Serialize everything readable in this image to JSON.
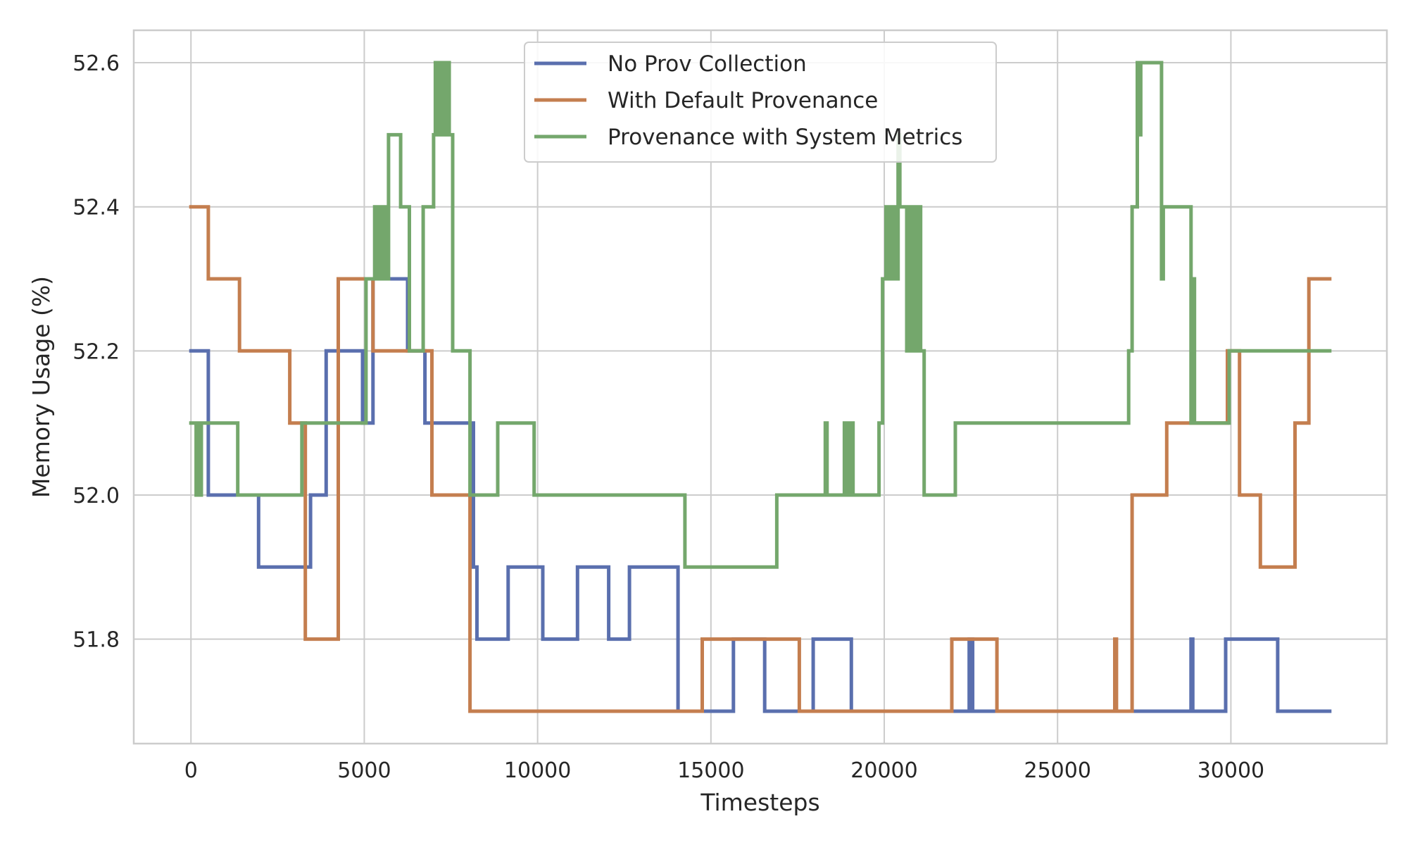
{
  "chart_data": {
    "type": "line",
    "step": "post",
    "xlabel": "Timesteps",
    "ylabel": "Memory Usage (%)",
    "xlim": [
      -1650,
      34500
    ],
    "ylim": [
      51.655,
      52.645
    ],
    "xticks": [
      0,
      5000,
      10000,
      15000,
      20000,
      25000,
      30000
    ],
    "yticks": [
      51.8,
      52.0,
      52.2,
      52.4,
      52.6
    ],
    "ytick_labels": [
      "51.8",
      "52.0",
      "52.2",
      "52.4",
      "52.6"
    ],
    "grid": true,
    "legend_position": "top-center",
    "series": [
      {
        "name": "No Prov Collection",
        "color": "#5a6fae",
        "x": [
          0,
          500,
          1950,
          3450,
          3900,
          4950,
          5250,
          6250,
          6750,
          8150,
          8250,
          9150,
          10150,
          11150,
          12050,
          12650,
          14050,
          14150,
          15650,
          16550,
          17650,
          17950,
          19050,
          22050,
          22450,
          22550,
          23050,
          26550,
          28850,
          28900,
          29850,
          31350,
          32850
        ],
        "y": [
          52.2,
          52.0,
          51.9,
          52.0,
          52.2,
          52.1,
          52.3,
          52.2,
          52.1,
          51.9,
          51.8,
          51.9,
          51.8,
          51.9,
          51.8,
          51.9,
          51.7,
          51.7,
          51.8,
          51.7,
          51.7,
          51.8,
          51.7,
          51.7,
          51.8,
          51.7,
          51.7,
          51.7,
          51.8,
          51.7,
          51.8,
          51.7,
          51.7
        ]
      },
      {
        "name": "With Default Provenance",
        "color": "#c47e4f",
        "x": [
          0,
          500,
          1400,
          2850,
          3300,
          4250,
          5250,
          6950,
          8050,
          14150,
          14750,
          17550,
          21950,
          23250,
          26650,
          26700,
          27150,
          28150,
          28950,
          29900,
          30250,
          30850,
          31850,
          32250,
          32850
        ],
        "y": [
          52.4,
          52.3,
          52.2,
          52.1,
          51.8,
          52.3,
          52.2,
          52.0,
          51.7,
          51.7,
          51.8,
          51.7,
          51.8,
          51.7,
          51.8,
          51.7,
          52.0,
          52.1,
          52.1,
          52.2,
          52.0,
          51.9,
          52.1,
          52.3,
          52.3
        ]
      },
      {
        "name": "Provenance with System Metrics",
        "color": "#74a76c",
        "x": [
          0,
          150,
          200,
          250,
          300,
          350,
          1350,
          3200,
          5050,
          5300,
          5350,
          5400,
          5500,
          5550,
          5600,
          5700,
          6050,
          6300,
          6700,
          7000,
          7050,
          7100,
          7150,
          7200,
          7250,
          7300,
          7350,
          7450,
          7500,
          7550,
          8050,
          8850,
          9900,
          14250,
          16900,
          18300,
          18350,
          18850,
          18900,
          19000,
          19100,
          19150,
          19850,
          19950,
          20050,
          20150,
          20200,
          20300,
          20400,
          20450,
          20550,
          20650,
          20750,
          20800,
          20850,
          20900,
          20950,
          21050,
          21150,
          22050,
          27050,
          27150,
          27300,
          27350,
          27400,
          27450,
          28000,
          28050,
          28100,
          28850,
          28900,
          28950,
          29050,
          29850,
          29950,
          32850
        ],
        "y": [
          52.1,
          52.0,
          52.1,
          52.0,
          52.1,
          52.1,
          52.0,
          52.1,
          52.3,
          52.4,
          52.3,
          52.4,
          52.3,
          52.4,
          52.3,
          52.5,
          52.4,
          52.2,
          52.4,
          52.5,
          52.6,
          52.5,
          52.6,
          52.5,
          52.6,
          52.5,
          52.6,
          52.5,
          52.5,
          52.2,
          52.0,
          52.1,
          52.0,
          51.9,
          52.0,
          52.1,
          52.0,
          52.1,
          52.0,
          52.1,
          52.0,
          52.0,
          52.1,
          52.3,
          52.4,
          52.3,
          52.4,
          52.3,
          52.5,
          52.4,
          52.4,
          52.2,
          52.4,
          52.2,
          52.4,
          52.2,
          52.4,
          52.2,
          52.0,
          52.1,
          52.2,
          52.4,
          52.6,
          52.5,
          52.6,
          52.6,
          52.3,
          52.4,
          52.4,
          52.1,
          52.3,
          52.1,
          52.1,
          52.1,
          52.2,
          52.2
        ]
      }
    ]
  }
}
